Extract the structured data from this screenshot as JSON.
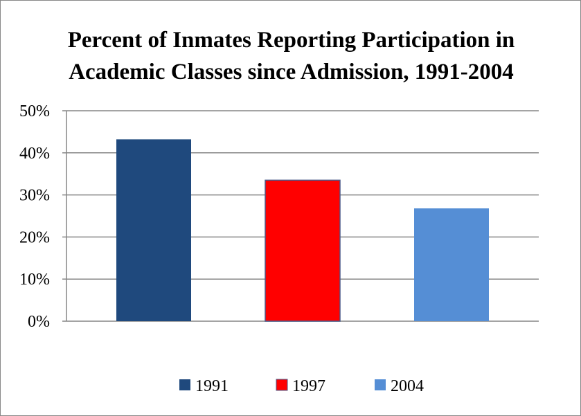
{
  "chart_data": {
    "type": "bar",
    "title": "Percent of Inmates Reporting Participation in Academic Classes since Admission, 1991-2004",
    "title_lines": [
      "Percent of Inmates Reporting Participation in",
      "Academic Classes since Admission, 1991-2004"
    ],
    "xlabel": "",
    "ylabel": "",
    "ylim": [
      0,
      50
    ],
    "y_ticks": [
      0,
      10,
      20,
      30,
      40,
      50
    ],
    "y_tick_labels": [
      "0%",
      "10%",
      "20%",
      "30%",
      "40%",
      "50%"
    ],
    "grid": true,
    "legend_position": "bottom",
    "series": [
      {
        "name": "1991",
        "value": 43.2,
        "color": "#1f497d"
      },
      {
        "name": "1997",
        "value": 33.5,
        "color": "#ff0000"
      },
      {
        "name": "2004",
        "value": 26.8,
        "color": "#558ed5"
      }
    ]
  }
}
